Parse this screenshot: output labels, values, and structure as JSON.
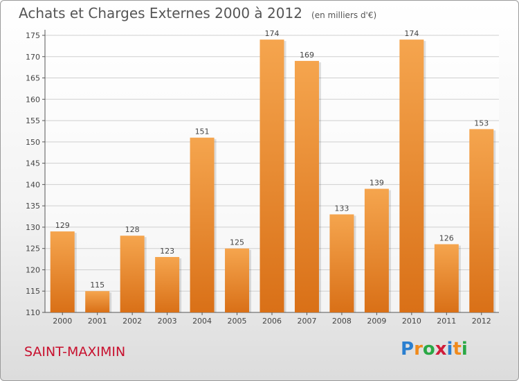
{
  "chart_data": {
    "type": "bar",
    "title": "Achats et Charges Externes 2000 à 2012",
    "subtitle": "(en milliers d'€)",
    "categories": [
      "2000",
      "2001",
      "2002",
      "2003",
      "2004",
      "2005",
      "2006",
      "2007",
      "2008",
      "2009",
      "2010",
      "2011",
      "2012"
    ],
    "values": [
      129,
      115,
      128,
      123,
      151,
      125,
      174,
      169,
      133,
      139,
      174,
      126,
      153
    ],
    "ylim": [
      110,
      175
    ],
    "yticks": [
      110,
      115,
      120,
      125,
      130,
      135,
      140,
      145,
      150,
      155,
      160,
      165,
      170,
      175
    ],
    "grid": true,
    "bar_color_top": "#f5a54e",
    "bar_color_bottom": "#d97017"
  },
  "location": "SAINT-MAXIMIN",
  "logo": {
    "text": "Proxiti",
    "letters": [
      {
        "ch": "P",
        "color": "#2a7fd0"
      },
      {
        "ch": "r",
        "color": "#f08a1c"
      },
      {
        "ch": "o",
        "color": "#2aa845"
      },
      {
        "ch": "x",
        "color": "#d01c3a"
      },
      {
        "ch": "i",
        "color": "#2a7fd0"
      },
      {
        "ch": "t",
        "color": "#f08a1c"
      },
      {
        "ch": "i",
        "color": "#2aa845"
      }
    ]
  }
}
